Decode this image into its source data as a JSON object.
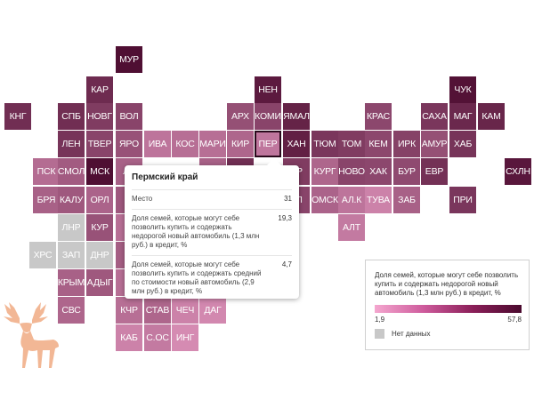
{
  "colors": {
    "scale_min": "#f4a7cf",
    "scale_max": "#4a0a2e",
    "no_data": "#c8c8c8",
    "selected_outline": "#2a0a1c",
    "text": "#ffffff",
    "deer": "#f2b795"
  },
  "map": {
    "selected": "ПЕР"
  },
  "regions": [
    {
      "code": "МУР",
      "v": 56
    },
    {
      "code": "КАР",
      "v": 46
    },
    {
      "code": "НЕН",
      "v": 52
    },
    {
      "code": "ЧУК",
      "v": 55
    },
    {
      "code": "КНГ",
      "v": 45
    },
    {
      "code": "СПБ",
      "v": 45
    },
    {
      "code": "НОВГ",
      "v": 40
    },
    {
      "code": "ВОЛ",
      "v": 37
    },
    {
      "code": "АРХ",
      "v": 33
    },
    {
      "code": "КОМИ",
      "v": 37
    },
    {
      "code": "ЯМАЛ",
      "v": 49
    },
    {
      "code": "КРАС",
      "v": 36
    },
    {
      "code": "САХА",
      "v": 42
    },
    {
      "code": "МАГ",
      "v": 47
    },
    {
      "code": "КАМ",
      "v": 48
    },
    {
      "code": "ЛЕН",
      "v": 43
    },
    {
      "code": "ТВЕР",
      "v": 37
    },
    {
      "code": "ЯРО",
      "v": 32
    },
    {
      "code": "ИВА",
      "v": 20
    },
    {
      "code": "КОС",
      "v": 22
    },
    {
      "code": "МАРИ",
      "v": 22
    },
    {
      "code": "КИР",
      "v": 25
    },
    {
      "code": "ПЕР",
      "v": 19.3
    },
    {
      "code": "ХАН",
      "v": 50
    },
    {
      "code": "ТЮМ",
      "v": 42
    },
    {
      "code": "ТОМ",
      "v": 40
    },
    {
      "code": "КЕМ",
      "v": 36
    },
    {
      "code": "ИРК",
      "v": 38
    },
    {
      "code": "АМУР",
      "v": 33
    },
    {
      "code": "ХАБ",
      "v": 43
    },
    {
      "code": "ПСК",
      "v": 23
    },
    {
      "code": "СМОЛ",
      "v": 29
    },
    {
      "code": "МСК",
      "v": 56
    },
    {
      "code": "КУРГ",
      "v": 25
    },
    {
      "code": "НОВО",
      "v": 37
    },
    {
      "code": "ХАК",
      "v": 36
    },
    {
      "code": "БУР",
      "v": 35
    },
    {
      "code": "ЕВР",
      "v": 44
    },
    {
      "code": "СХЛН",
      "v": 53
    },
    {
      "code": "БРЯ",
      "v": 27
    },
    {
      "code": "КАЛУ",
      "v": 30
    },
    {
      "code": "ОРЛ",
      "v": 26
    },
    {
      "code": "ОМСК",
      "v": 26
    },
    {
      "code": "АЛ.К",
      "v": 20
    },
    {
      "code": "ТУВА",
      "v": 15
    },
    {
      "code": "ЗАБ",
      "v": 27
    },
    {
      "code": "ПРИ",
      "v": 42
    },
    {
      "code": "ЛНР",
      "v": null
    },
    {
      "code": "КУР",
      "v": 32
    },
    {
      "code": "АЛТ",
      "v": 18
    },
    {
      "code": "ХРС",
      "v": null
    },
    {
      "code": "ЗАП",
      "v": null
    },
    {
      "code": "ДНР",
      "v": null
    },
    {
      "code": "КРЫМ",
      "v": 27
    },
    {
      "code": "АДЫГ",
      "v": 30
    },
    {
      "code": "СВС",
      "v": 25
    },
    {
      "code": "КЧР",
      "v": 22
    },
    {
      "code": "СТАВ",
      "v": 25
    },
    {
      "code": "ЧЕЧ",
      "v": 15
    },
    {
      "code": "ДАГ",
      "v": 13
    },
    {
      "code": "КАБ",
      "v": 15
    },
    {
      "code": "С.ОС",
      "v": 18
    },
    {
      "code": "ИНГ",
      "v": 12
    },
    {
      "code": "",
      "v": 27
    },
    {
      "code": "",
      "v": 45
    },
    {
      "code": "Т",
      "v": 30
    },
    {
      "code": "Б",
      "v": 28
    },
    {
      "code": "Л",
      "v": 22
    },
    {
      "code": "Т",
      "v": 22
    },
    {
      "code": "Л",
      "v": 26
    },
    {
      "code": "ЛИ",
      "v": 27
    },
    {
      "code": "ЕЛ",
      "v": 37
    },
    {
      "code": "ЕР",
      "v": 40
    }
  ],
  "tooltip": {
    "title": "Пермский край",
    "rows": [
      {
        "label": "Место",
        "value": "31"
      },
      {
        "label": "Доля семей, которые могут себе позволить купить и содержать недорогой новый автомобиль (1,3 млн руб.) в кредит, %",
        "value": "19,3"
      },
      {
        "label": "Доля семей, которые могут себе позволить купить и содержать средний по стоимости новый автомобиль (2,9 млн руб.) в кредит, %",
        "value": "4,7"
      }
    ]
  },
  "legend": {
    "title": "Доля семей, которые могут себе позволить купить и содержать недорогой новый автомобиль (1,3 млн руб.) в кредит, %",
    "min": "1,9",
    "max": "57,8",
    "no_data_label": "Нет данных"
  }
}
